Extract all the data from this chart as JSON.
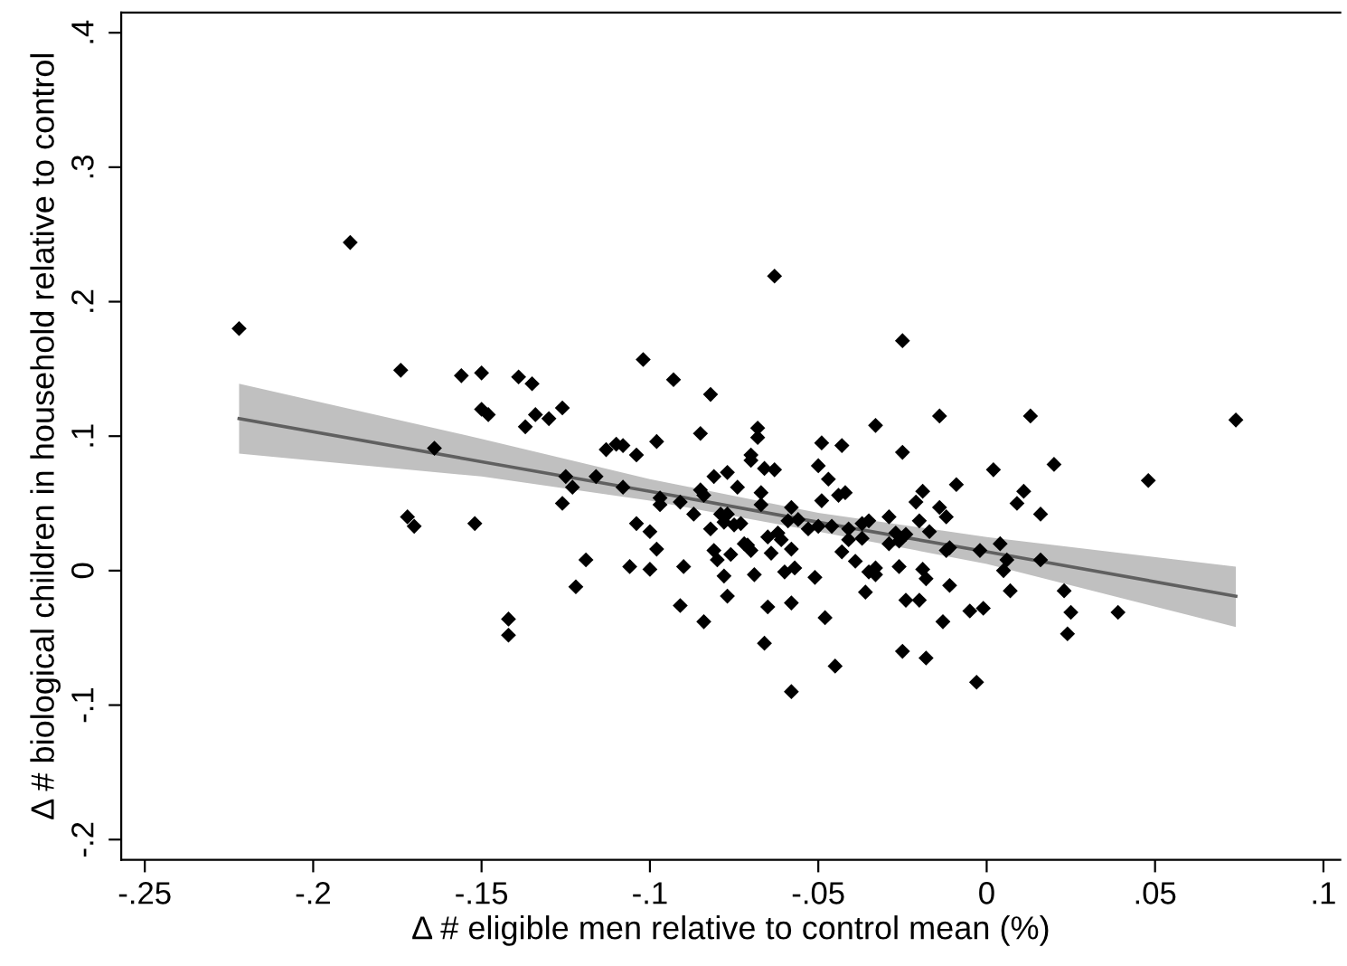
{
  "chart_data": {
    "type": "scatter",
    "xlabel": "Δ # eligible men relative to control mean (%)",
    "ylabel": "Δ # biological children in household relative to control",
    "xlim": [
      -0.257,
      0.105
    ],
    "ylim": [
      -0.215,
      0.415
    ],
    "xticks": [
      {
        "value": -0.25,
        "label": "-.25"
      },
      {
        "value": -0.2,
        "label": "-.2"
      },
      {
        "value": -0.15,
        "label": "-.15"
      },
      {
        "value": -0.1,
        "label": "-.1"
      },
      {
        "value": -0.05,
        "label": "-.05"
      },
      0,
      {
        "value": 0.05,
        "label": ".05"
      },
      {
        "value": 0.1,
        "label": ".1"
      }
    ],
    "yticks": [
      {
        "value": -0.2,
        "label": "-.2"
      },
      {
        "value": -0.1,
        "label": "-.1"
      },
      0,
      {
        "value": 0.1,
        "label": ".1"
      },
      {
        "value": 0.2,
        "label": ".2"
      },
      {
        "value": 0.3,
        "label": ".3"
      },
      {
        "value": 0.4,
        "label": ".4"
      }
    ],
    "grid": false,
    "legend": false,
    "series": [
      {
        "type": "line",
        "color": "#606060",
        "marker": "none",
        "line_style": "solid",
        "x": [
          -0.222,
          -0.15,
          -0.1,
          -0.05,
          0,
          0.074
        ],
        "values": [
          0.113,
          0.081,
          0.059,
          0.036,
          0.014,
          -0.019
        ],
        "lower": [
          0.087,
          0.07,
          0.052,
          0.029,
          0.005,
          -0.042
        ],
        "upper": [
          0.139,
          0.098,
          0.068,
          0.043,
          0.025,
          0.003
        ]
      },
      {
        "color": "#000000",
        "marker": "diamond",
        "x": [
          -0.222,
          -0.189,
          -0.174,
          -0.172,
          -0.17,
          -0.164,
          -0.156,
          -0.152,
          -0.15,
          -0.15,
          -0.148,
          -0.142,
          -0.142,
          -0.139,
          -0.137,
          -0.135,
          -0.134,
          -0.13,
          -0.126,
          -0.125,
          -0.126,
          -0.123,
          -0.122,
          -0.119,
          -0.116,
          -0.113,
          -0.11,
          -0.108,
          -0.108,
          -0.106,
          -0.104,
          -0.104,
          -0.102,
          -0.1,
          -0.1,
          -0.098,
          -0.098,
          -0.097,
          -0.097,
          -0.093,
          -0.091,
          -0.091,
          -0.09,
          -0.087,
          -0.085,
          -0.085,
          -0.084,
          -0.084,
          -0.082,
          -0.082,
          -0.081,
          -0.081,
          -0.08,
          -0.079,
          -0.078,
          -0.078,
          -0.077,
          -0.077,
          -0.077,
          -0.076,
          -0.075,
          -0.074,
          -0.073,
          -0.072,
          -0.071,
          -0.07,
          -0.07,
          -0.07,
          -0.069,
          -0.068,
          -0.068,
          -0.067,
          -0.067,
          -0.066,
          -0.066,
          -0.065,
          -0.065,
          -0.064,
          -0.063,
          -0.063,
          -0.062,
          -0.061,
          -0.06,
          -0.059,
          -0.058,
          -0.058,
          -0.058,
          -0.058,
          -0.057,
          -0.056,
          -0.053,
          -0.051,
          -0.05,
          -0.05,
          -0.049,
          -0.049,
          -0.048,
          -0.047,
          -0.046,
          -0.045,
          -0.044,
          -0.043,
          -0.043,
          -0.042,
          -0.041,
          -0.041,
          -0.039,
          -0.037,
          -0.037,
          -0.036,
          -0.035,
          -0.035,
          -0.033,
          -0.033,
          -0.033,
          -0.029,
          -0.029,
          -0.027,
          -0.026,
          -0.026,
          -0.025,
          -0.025,
          -0.025,
          -0.024,
          -0.024,
          -0.021,
          -0.02,
          -0.02,
          -0.019,
          -0.019,
          -0.018,
          -0.018,
          -0.017,
          -0.014,
          -0.014,
          -0.013,
          -0.012,
          -0.012,
          -0.011,
          -0.011,
          -0.009,
          -0.005,
          -0.003,
          -0.002,
          -0.001,
          0.002,
          0.004,
          0.005,
          0.006,
          0.007,
          0.009,
          0.011,
          0.013,
          0.016,
          0.016,
          0.02,
          0.023,
          0.025,
          0.024,
          0.039,
          0.048,
          0.074
        ],
        "values": [
          0.18,
          0.244,
          0.149,
          0.04,
          0.033,
          0.091,
          0.145,
          0.035,
          0.147,
          0.12,
          0.116,
          -0.036,
          -0.048,
          0.144,
          0.107,
          0.139,
          0.116,
          0.113,
          0.121,
          0.07,
          0.05,
          0.062,
          -0.012,
          0.008,
          0.07,
          0.09,
          0.094,
          0.093,
          0.062,
          0.003,
          0.086,
          0.035,
          0.157,
          0.029,
          0.001,
          0.016,
          0.096,
          0.054,
          0.049,
          0.142,
          0.051,
          -0.026,
          0.003,
          0.042,
          0.102,
          0.06,
          0.056,
          -0.038,
          0.031,
          0.131,
          0.07,
          0.015,
          0.008,
          0.042,
          -0.004,
          0.036,
          0.073,
          0.042,
          -0.019,
          0.012,
          0.034,
          0.062,
          0.035,
          0.02,
          0.019,
          0.015,
          0.086,
          0.082,
          -0.003,
          0.099,
          0.106,
          0.049,
          0.058,
          0.076,
          -0.054,
          0.025,
          -0.027,
          0.013,
          0.075,
          0.219,
          0.028,
          0.023,
          -0.001,
          0.037,
          0.047,
          0.016,
          -0.024,
          -0.09,
          0.002,
          0.038,
          0.031,
          -0.005,
          0.078,
          0.033,
          0.095,
          0.052,
          -0.035,
          0.068,
          0.033,
          -0.071,
          0.056,
          0.014,
          0.093,
          0.058,
          0.023,
          0.031,
          0.007,
          0.035,
          0.024,
          -0.016,
          0.037,
          -0.001,
          0.002,
          0.108,
          -0.003,
          0.04,
          0.02,
          0.028,
          0.022,
          0.003,
          0.171,
          0.088,
          -0.06,
          -0.022,
          0.027,
          0.051,
          -0.022,
          0.037,
          0.001,
          0.059,
          -0.006,
          -0.065,
          0.029,
          0.115,
          0.047,
          -0.038,
          0.015,
          0.04,
          -0.011,
          0.017,
          0.064,
          -0.03,
          -0.083,
          0.015,
          -0.028,
          0.075,
          0.02,
          0.0,
          0.008,
          -0.015,
          0.05,
          0.059,
          0.115,
          0.042,
          0.008,
          0.079,
          -0.015,
          -0.031,
          -0.047,
          -0.031,
          0.067,
          0.112
        ]
      }
    ]
  }
}
